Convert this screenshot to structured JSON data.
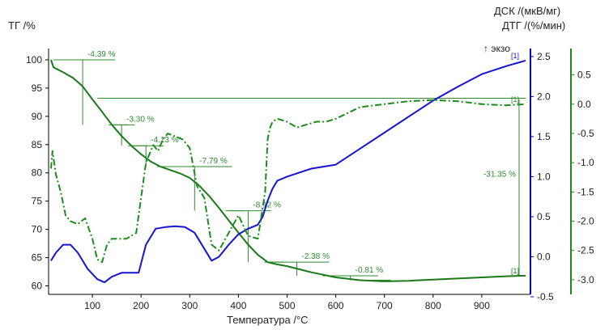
{
  "chart_data": {
    "type": "line",
    "title": "",
    "xlabel": "Температура /°C",
    "xlim": [
      10,
      1000
    ],
    "x_ticks": [
      100,
      200,
      300,
      400,
      500,
      600,
      700,
      800,
      900
    ],
    "grid": false,
    "exo_label": "↑ экзо",
    "axes": {
      "tg": {
        "label": "ТГ /%",
        "ylim": [
          58.5,
          102
        ],
        "ticks": [
          60,
          65,
          70,
          75,
          80,
          85,
          90,
          95,
          100
        ],
        "color": "#1a6e1a"
      },
      "dsc": {
        "label": "ДСК /(мкВ/мг)",
        "ylim": [
          -0.47,
          2.6
        ],
        "ticks": [
          -0.5,
          0.0,
          0.5,
          1.0,
          1.5,
          2.0,
          2.5
        ],
        "color": "#0000cc"
      },
      "dtg": {
        "label": "ДТГ /(%/мин)",
        "ylim": [
          -3.25,
          0.95
        ],
        "ticks": [
          -3.0,
          -2.5,
          -2.0,
          -1.5,
          -1.0,
          -0.5,
          0.0,
          0.5
        ],
        "color": "#1a8c1a"
      }
    },
    "series": [
      {
        "name": "TG",
        "axis": "tg",
        "color": "#1a7a1a",
        "x": [
          15,
          20,
          40,
          60,
          80,
          100,
          120,
          140,
          160,
          180,
          200,
          220,
          240,
          260,
          280,
          300,
          320,
          340,
          360,
          380,
          400,
          420,
          440,
          460,
          480,
          500,
          550,
          600,
          650,
          700,
          750,
          800,
          850,
          900,
          950,
          990
        ],
        "y": [
          100,
          98.7,
          97.8,
          96.8,
          95.3,
          93.0,
          90.8,
          88.5,
          86.5,
          84.8,
          83.3,
          82.0,
          81.1,
          80.5,
          79.9,
          79.1,
          77.7,
          75.9,
          73.8,
          71.6,
          69.4,
          67.3,
          65.5,
          64.2,
          63.8,
          63.5,
          62.4,
          61.5,
          61.0,
          60.8,
          60.9,
          61.1,
          61.3,
          61.5,
          61.7,
          61.8
        ]
      },
      {
        "name": "DSC",
        "axis": "dsc",
        "color": "#1414d2",
        "x": [
          15,
          25,
          40,
          55,
          70,
          90,
          110,
          125,
          140,
          160,
          180,
          195,
          210,
          230,
          250,
          270,
          290,
          310,
          330,
          345,
          360,
          380,
          400,
          420,
          440,
          450,
          460,
          470,
          480,
          500,
          550,
          600,
          650,
          700,
          750,
          800,
          850,
          900,
          950,
          990
        ],
        "y": [
          -0.05,
          0.05,
          0.15,
          0.15,
          0.05,
          -0.15,
          -0.28,
          -0.32,
          -0.25,
          -0.2,
          -0.2,
          -0.2,
          0.15,
          0.35,
          0.37,
          0.38,
          0.37,
          0.3,
          0.1,
          -0.05,
          0.0,
          0.15,
          0.28,
          0.35,
          0.4,
          0.5,
          0.7,
          0.85,
          0.95,
          1.0,
          1.1,
          1.15,
          1.35,
          1.55,
          1.75,
          1.95,
          2.12,
          2.28,
          2.38,
          2.45
        ]
      },
      {
        "name": "DTG",
        "axis": "dtg",
        "color": "#1a8c1a",
        "dashed": true,
        "x": [
          15,
          18,
          25,
          35,
          45,
          55,
          70,
          85,
          100,
          110,
          120,
          130,
          140,
          150,
          170,
          190,
          210,
          225,
          235,
          245,
          255,
          270,
          285,
          300,
          315,
          330,
          345,
          360,
          380,
          400,
          420,
          440,
          455,
          460,
          465,
          470,
          480,
          500,
          520,
          540,
          560,
          580,
          600,
          650,
          700,
          750,
          800,
          850,
          900,
          950,
          990
        ],
        "y": [
          -1.1,
          -0.8,
          -1.2,
          -1.5,
          -1.9,
          -2.0,
          -2.05,
          -1.95,
          -2.3,
          -2.65,
          -2.7,
          -2.4,
          -2.3,
          -2.3,
          -2.3,
          -2.2,
          -1.0,
          -0.7,
          -0.8,
          -0.6,
          -0.5,
          -0.55,
          -0.6,
          -0.75,
          -1.4,
          -1.6,
          -2.4,
          -2.5,
          -2.2,
          -1.9,
          -2.25,
          -2.3,
          -1.5,
          -0.6,
          -0.4,
          -0.3,
          -0.25,
          -0.3,
          -0.4,
          -0.35,
          -0.3,
          -0.3,
          -0.25,
          -0.05,
          0.0,
          0.05,
          0.07,
          0.05,
          0.0,
          -0.02,
          0.0
        ]
      }
    ],
    "annotations": [
      {
        "text": "-4.39 %",
        "x1": 20,
        "x2": 140,
        "axis": "tg",
        "y1": 100,
        "y2": 88.5
      },
      {
        "text": "-3.30 %",
        "x1": 140,
        "x2": 180,
        "axis": "tg",
        "y1": 88.5,
        "y2": 84.8
      },
      {
        "text": "-4.13 %",
        "x1": 180,
        "x2": 240,
        "axis": "tg",
        "y1": 84.8,
        "y2": 81.1
      },
      {
        "text": "-7.79 %",
        "x1": 240,
        "x2": 380,
        "axis": "tg",
        "y1": 81.1,
        "y2": 73.3
      },
      {
        "text": "-8.12 %",
        "x1": 380,
        "x2": 460,
        "axis": "tg",
        "y1": 73.3,
        "y2": 64.2
      },
      {
        "text": "-2.38 %",
        "x1": 460,
        "x2": 580,
        "axis": "tg",
        "y1": 64.2,
        "y2": 61.8
      },
      {
        "text": "-0.81 %",
        "x1": 580,
        "x2": 680,
        "axis": "tg",
        "y1": 61.8,
        "y2": 61.0
      },
      {
        "text": "-31.35 %",
        "x1": 20,
        "x2": 990,
        "axis": "tg",
        "y1": 100,
        "y2": 61.8
      }
    ],
    "end_markers": [
      "[1]",
      "[1]",
      "[1]"
    ]
  }
}
